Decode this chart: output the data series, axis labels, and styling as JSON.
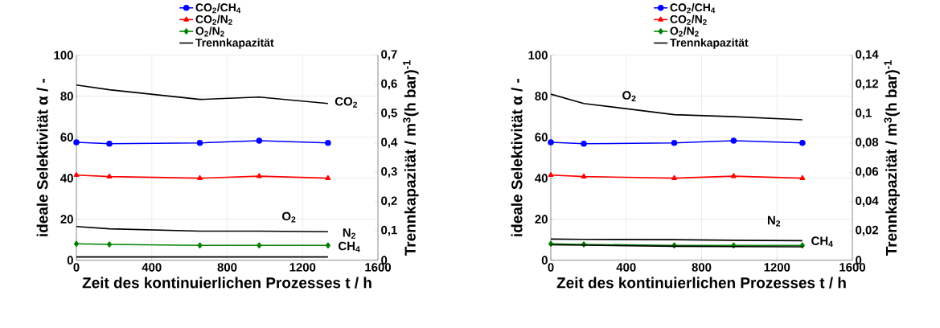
{
  "chart_data": [
    {
      "type": "line",
      "xlabel": "Zeit des kontinuierlichen Prozesses t / h",
      "ylabel": "ideale Selektivität α / -",
      "y2label": "Trennkapazität / m$^{3}$(h bar)$^{-1}$",
      "x": [
        0,
        175,
        655,
        970,
        1335
      ],
      "xlim": [
        0,
        1600
      ],
      "xticks": [
        0,
        400,
        800,
        1200,
        1600
      ],
      "ylim": [
        0,
        100
      ],
      "yticks": [
        0,
        20,
        40,
        60,
        80,
        100
      ],
      "y2lim": [
        0,
        0.7
      ],
      "y2ticks": [
        0,
        {
          "value": 0.1,
          "label": "0,1"
        },
        {
          "value": 0.2,
          "label": "0,2"
        },
        {
          "value": 0.3,
          "label": "0,3"
        },
        {
          "value": 0.4,
          "label": "0,4"
        },
        {
          "value": 0.5,
          "label": "0,5"
        },
        {
          "value": 0.6,
          "label": "0,6"
        },
        {
          "value": 0.7,
          "label": "0,7"
        }
      ],
      "grid": true,
      "legend": "top",
      "line_style": "solid",
      "series": [
        {
          "name": "CO$_{2}$/CH$_{4}$",
          "color": "#0000ff",
          "marker": "circle",
          "values": [
            57.5,
            56.8,
            57.2,
            58.3,
            57.2
          ]
        },
        {
          "name": "CO$_{2}$/N$_{2}$",
          "color": "#ff0000",
          "marker": "triangle",
          "values": [
            41.5,
            40.8,
            40,
            41,
            40
          ]
        },
        {
          "name": "O$_{2}$/N$_{2}$",
          "color": "#008000",
          "marker": "diamond",
          "values": [
            8,
            7.7,
            7.2,
            7.2,
            7.2
          ]
        },
        {
          "name": "Trennkapazität",
          "color": "#000000",
          "marker": "none",
          "axis": "y2",
          "values": [
            0.598,
            0.582,
            0.549,
            0.557,
            0.535
          ]
        },
        {
          "color": "#000000",
          "marker": "none",
          "axis": "y2",
          "values": [
            0.115,
            0.107,
            0.099,
            0.099,
            0.097
          ]
        },
        {
          "color": "#000000",
          "marker": "none",
          "axis": "y2",
          "values": [
            0.011,
            0.011,
            0.011,
            0.011,
            0.011
          ]
        }
      ],
      "annotations": [
        "CO$_{2}$",
        "O$_{2}$",
        "N$_{2}$",
        "CH$_{4}$"
      ]
    },
    {
      "type": "line",
      "xlabel": "Zeit des kontinuierlichen Prozesses t / h",
      "ylabel": "ideale Selektivität α / -",
      "y2label": "Trennkapazität / m$^{3}$(h bar)$^{-1}$",
      "x": [
        0,
        175,
        655,
        970,
        1335
      ],
      "xlim": [
        0,
        1600
      ],
      "xticks": [
        0,
        400,
        800,
        1200,
        1600
      ],
      "ylim": [
        0,
        100
      ],
      "yticks": [
        0,
        20,
        40,
        60,
        80,
        100
      ],
      "y2lim": [
        0,
        0.14
      ],
      "y2ticks": [
        0,
        {
          "value": 0.02,
          "label": "0,02"
        },
        {
          "value": 0.04,
          "label": "0,04"
        },
        {
          "value": 0.06,
          "label": "0,06"
        },
        {
          "value": 0.08,
          "label": "0,08"
        },
        {
          "value": 0.1,
          "label": "0,1"
        },
        {
          "value": 0.12,
          "label": "0,12"
        },
        {
          "value": 0.14,
          "label": "0,14"
        }
      ],
      "grid": true,
      "legend": "top",
      "line_style": "solid",
      "series": [
        {
          "name": "CO$_{2}$/CH$_{4}$",
          "color": "#0000ff",
          "marker": "circle",
          "values": [
            57.5,
            56.8,
            57.2,
            58.3,
            57.2
          ]
        },
        {
          "name": "CO$_{2}$/N$_{2}$",
          "color": "#ff0000",
          "marker": "triangle",
          "values": [
            41.5,
            40.8,
            40,
            41,
            40
          ]
        },
        {
          "name": "O$_{2}$/N$_{2}$",
          "color": "#008000",
          "marker": "diamond",
          "values": [
            8,
            7.7,
            7.2,
            7.2,
            7.2
          ]
        },
        {
          "name": "Trennkapazität",
          "color": "#000000",
          "marker": "none",
          "axis": "y2",
          "values": [
            0.1134,
            0.107,
            0.0994,
            0.098,
            0.0959
          ]
        },
        {
          "color": "#000000",
          "marker": "none",
          "axis": "y2",
          "values": [
            0.0144,
            0.0142,
            0.014,
            0.0136,
            0.0133
          ]
        },
        {
          "color": "#000000",
          "marker": "none",
          "axis": "y2",
          "values": [
            0.0105,
            0.0102,
            0.0095,
            0.0093,
            0.0091
          ]
        }
      ],
      "annotations": [
        "O$_{2}$",
        "N$_{2}$",
        "CH$_{4}$"
      ]
    }
  ]
}
